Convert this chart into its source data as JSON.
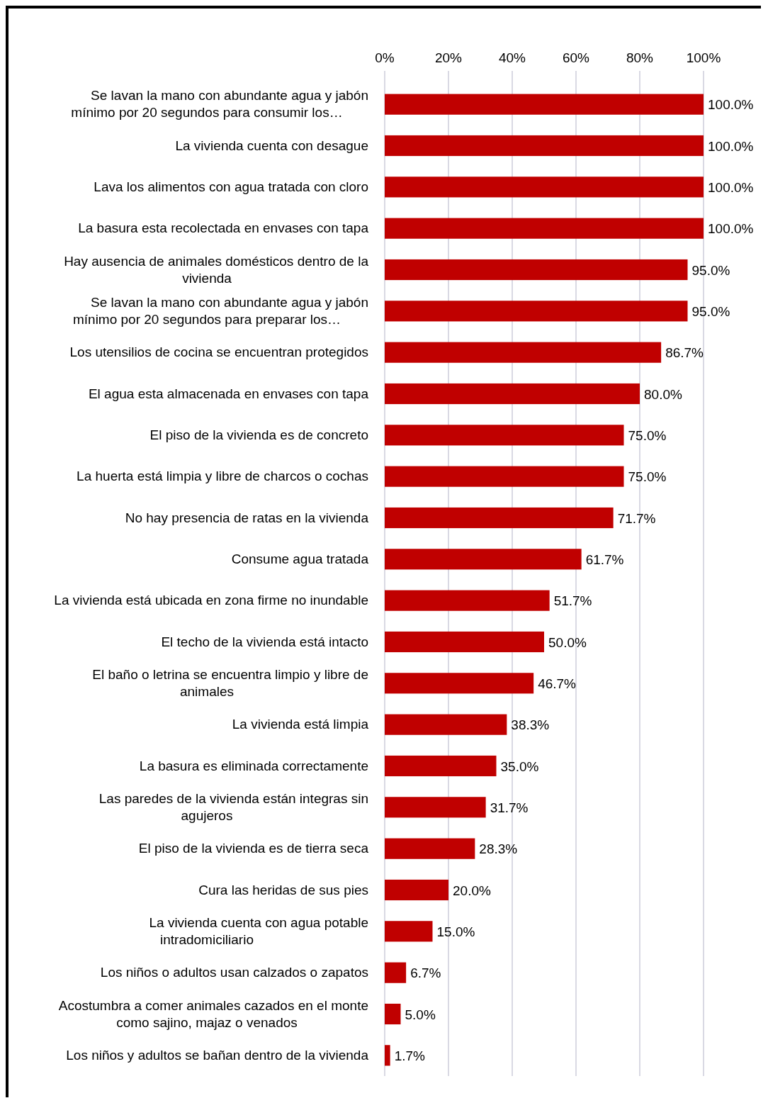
{
  "chart_data": {
    "type": "bar",
    "orientation": "horizontal",
    "categories": [
      "Se lavan la mano con abundante agua y jabón mínimo por 20 segundos para consumir los…",
      "La vivienda cuenta con desague",
      "Lava los alimentos con agua tratada con cloro",
      "La basura esta recolectada en envases con tapa",
      "Hay ausencia de animales domésticos dentro de la vivienda",
      "Se lavan la mano con abundante agua y jabón mínimo por 20 segundos para preparar los…",
      "Los utensilios de cocina se encuentran protegidos",
      "El agua esta almacenada en envases con tapa",
      "El piso de la vivienda es de concreto",
      "La huerta está limpia y libre de charcos o cochas",
      "No hay presencia de ratas en la vivienda",
      "Consume agua tratada",
      "La vivienda está ubicada en zona firme no inundable",
      "El techo de la vivienda está intacto",
      "El baño o letrina se encuentra limpio y libre de animales",
      "La vivienda está limpia",
      "La basura es eliminada correctamente",
      "Las paredes de la vivienda están integras sin agujeros",
      "El piso de la vivienda es de tierra seca",
      "Cura las heridas de sus pies",
      "La vivienda cuenta con agua potable intradomiciliario",
      "Los niños o adultos usan calzados o zapatos",
      "Acostumbra a comer animales cazados en el monte como sajino, majaz o venados",
      "Los niños y adultos se bañan dentro de la vivienda"
    ],
    "values": [
      100,
      100,
      100,
      100,
      95,
      95,
      86.7,
      80,
      75,
      75,
      71.7,
      61.7,
      51.7,
      50,
      46.7,
      38.3,
      35,
      31.7,
      28.3,
      20,
      15,
      6.7,
      5,
      1.7
    ],
    "value_labels": [
      "100.0%",
      "100.0%",
      "100.0%",
      "100.0%",
      "95.0%",
      "95.0%",
      "86.7%",
      "80.0%",
      "75.0%",
      "75.0%",
      "71.7%",
      "61.7%",
      "51.7%",
      "50.0%",
      "46.7%",
      "38.3%",
      "35.0%",
      "31.7%",
      "28.3%",
      "20.0%",
      "15.0%",
      "6.7%",
      "5.0%",
      "1.7%"
    ],
    "color": "#c00000",
    "xlim": [
      0,
      100
    ],
    "xticks": [
      {
        "value": 0,
        "label": "0%"
      },
      {
        "value": 20,
        "label": "20%"
      },
      {
        "value": 40,
        "label": "40%"
      },
      {
        "value": 60,
        "label": "60%"
      },
      {
        "value": 80,
        "label": "80%"
      },
      {
        "value": 100,
        "label": "100%"
      }
    ],
    "grid": "x"
  }
}
